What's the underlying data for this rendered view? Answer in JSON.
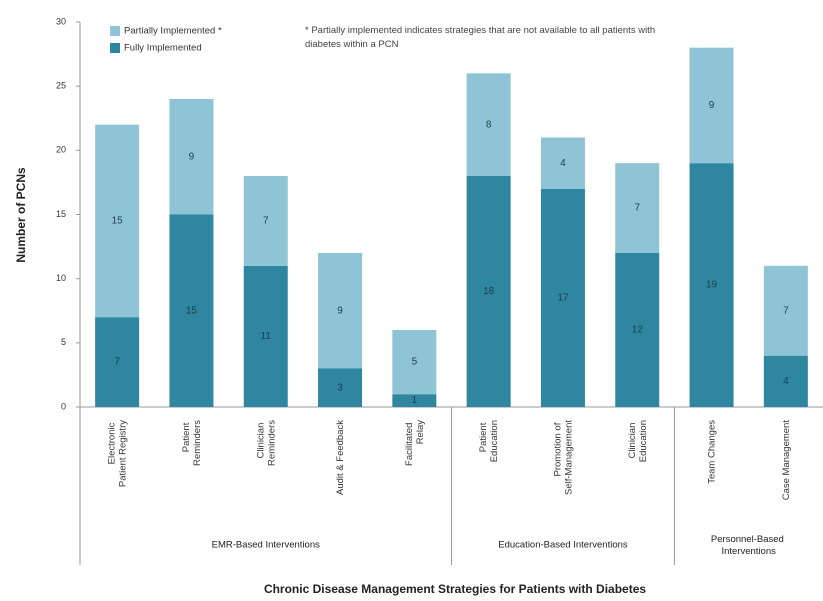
{
  "chart_data": {
    "type": "stacked_bar",
    "x_label": "Chronic Disease Management Strategies for Patients with Diabetes",
    "y_label": "Number of PCNs",
    "note": "* Partially implemented indicates strategies that are not available to all patients with diabetes within a PCN",
    "categories": [
      "Electronic Patient Registry",
      "Patient Reminders",
      "Clinician Reminders",
      "Audit & Feedback",
      "Facilitated Relay",
      "Patient Education",
      "Promotion of Self-Management",
      "Clinician Education",
      "Team Changes",
      "Case Management"
    ],
    "groups": [
      {
        "label": "EMR-Based Interventions",
        "count": 5
      },
      {
        "label": "Education-Based Interventions",
        "count": 3
      },
      {
        "label": "Personnel-Based Interventions",
        "count": 2
      }
    ],
    "series": [
      {
        "name": "Partially Implemented *",
        "color": "#8fc3d6",
        "values": [
          15,
          9,
          7,
          9,
          5,
          8,
          4,
          7,
          9,
          7
        ]
      },
      {
        "name": "Fully Implemented",
        "color": "#2f86a0",
        "values": [
          7,
          15,
          11,
          3,
          1,
          18,
          17,
          12,
          19,
          4
        ]
      }
    ],
    "ylim": [
      0,
      30
    ],
    "yticks": [
      0,
      5,
      10,
      15,
      20,
      25,
      30
    ],
    "legend": "upper-left"
  }
}
